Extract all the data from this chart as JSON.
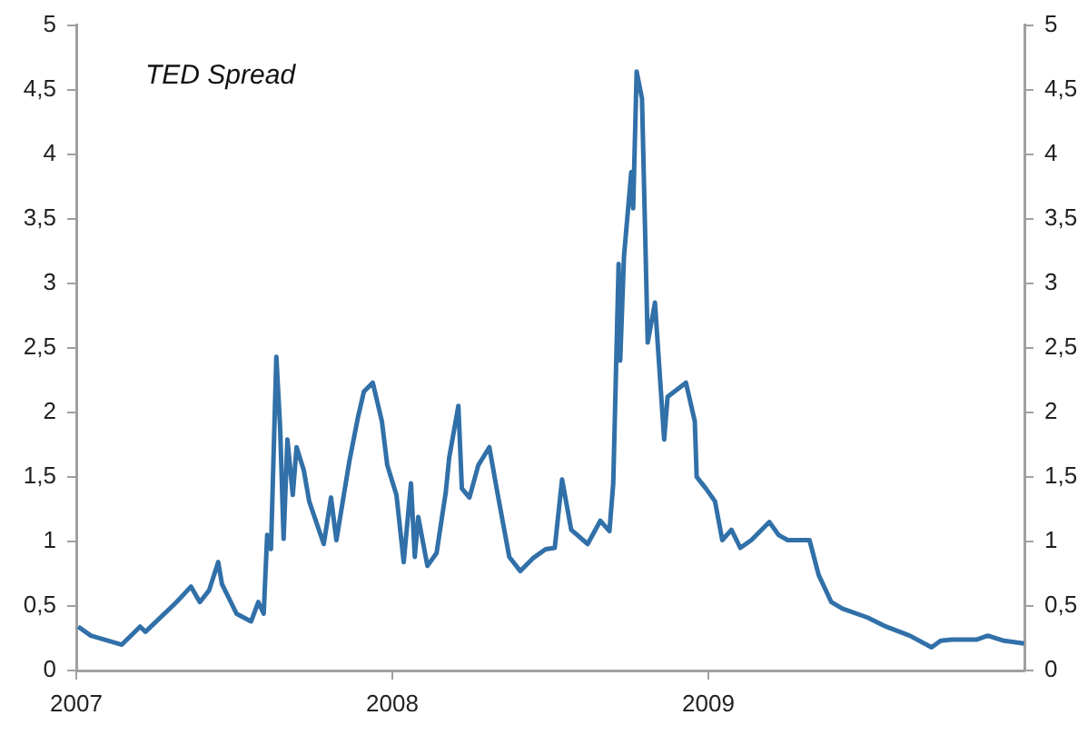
{
  "chart_data": {
    "type": "line",
    "title": "TED Spread",
    "x": [
      2007.006,
      2007.046,
      2007.144,
      2007.202,
      2007.219,
      2007.317,
      2007.363,
      2007.391,
      2007.42,
      2007.449,
      2007.461,
      2007.507,
      2007.553,
      2007.576,
      2007.593,
      2007.604,
      2007.616,
      2007.633,
      2007.645,
      2007.656,
      2007.668,
      2007.685,
      2007.697,
      2007.72,
      2007.737,
      2007.783,
      2007.806,
      2007.823,
      2007.864,
      2007.892,
      2007.91,
      2007.938,
      2007.967,
      2007.984,
      2008.013,
      2008.036,
      2008.059,
      2008.071,
      2008.082,
      2008.111,
      2008.14,
      2008.169,
      2008.18,
      2008.209,
      2008.22,
      2008.244,
      2008.272,
      2008.307,
      2008.33,
      2008.37,
      2008.405,
      2008.445,
      2008.485,
      2008.514,
      2008.537,
      2008.566,
      2008.618,
      2008.658,
      2008.687,
      2008.699,
      2008.716,
      2008.721,
      2008.733,
      2008.756,
      2008.762,
      2008.773,
      2008.79,
      2008.808,
      2008.831,
      2008.86,
      2008.871,
      2008.929,
      2008.957,
      2008.963,
      2008.992,
      2009.021,
      2009.044,
      2009.073,
      2009.101,
      2009.136,
      2009.193,
      2009.222,
      2009.251,
      2009.32,
      2009.349,
      2009.389,
      2009.424,
      2009.504,
      2009.562,
      2009.637,
      2009.706,
      2009.735,
      2009.769,
      2009.85,
      2009.884,
      2009.936,
      2009.999
    ],
    "series": [
      {
        "color": "#3170a8",
        "values": [
          0.34,
          0.27,
          0.2,
          0.34,
          0.3,
          0.53,
          0.65,
          0.53,
          0.62,
          0.84,
          0.67,
          0.44,
          0.38,
          0.53,
          0.44,
          1.05,
          0.94,
          2.43,
          1.88,
          1.02,
          1.79,
          1.36,
          1.73,
          1.55,
          1.31,
          0.98,
          1.34,
          1.01,
          1.62,
          1.97,
          2.16,
          2.23,
          1.93,
          1.59,
          1.36,
          0.84,
          1.45,
          0.88,
          1.19,
          0.81,
          0.91,
          1.38,
          1.65,
          2.05,
          1.41,
          1.34,
          1.59,
          1.73,
          1.41,
          0.88,
          0.77,
          0.87,
          0.94,
          0.95,
          1.48,
          1.09,
          0.98,
          1.16,
          1.08,
          1.45,
          3.15,
          2.4,
          3.21,
          3.86,
          3.58,
          4.64,
          4.43,
          2.54,
          2.85,
          1.79,
          2.12,
          2.23,
          1.93,
          1.5,
          1.41,
          1.31,
          1.01,
          1.09,
          0.95,
          1.01,
          1.15,
          1.05,
          1.01,
          1.01,
          0.74,
          0.53,
          0.48,
          0.41,
          0.34,
          0.27,
          0.18,
          0.23,
          0.24,
          0.24,
          0.27,
          0.23,
          0.21
        ]
      }
    ],
    "xlim": [
      2007,
      2010
    ],
    "xticks": [
      2007,
      2008,
      2009
    ],
    "ylim": [
      0,
      5
    ],
    "yticks": [
      0,
      {
        "value": 0.5,
        "label": "0,5"
      },
      1,
      {
        "value": 1.5,
        "label": "1,5"
      },
      2,
      {
        "value": 2.5,
        "label": "2,5"
      },
      3,
      {
        "value": 3.5,
        "label": "3,5"
      },
      4,
      {
        "value": 4.5,
        "label": "4,5"
      },
      5
    ],
    "y2lim": [
      0,
      5
    ],
    "y2ticks": [
      0,
      {
        "value": 0.5,
        "label": "0,5"
      },
      1,
      {
        "value": 1.5,
        "label": "1,5"
      },
      2,
      {
        "value": 2.5,
        "label": "2,5"
      },
      3,
      {
        "value": 3.5,
        "label": "3,5"
      },
      4,
      {
        "value": 4.5,
        "label": "4,5"
      },
      5
    ],
    "grid": false,
    "legend": false,
    "marker": "none",
    "line_style": "solid"
  }
}
